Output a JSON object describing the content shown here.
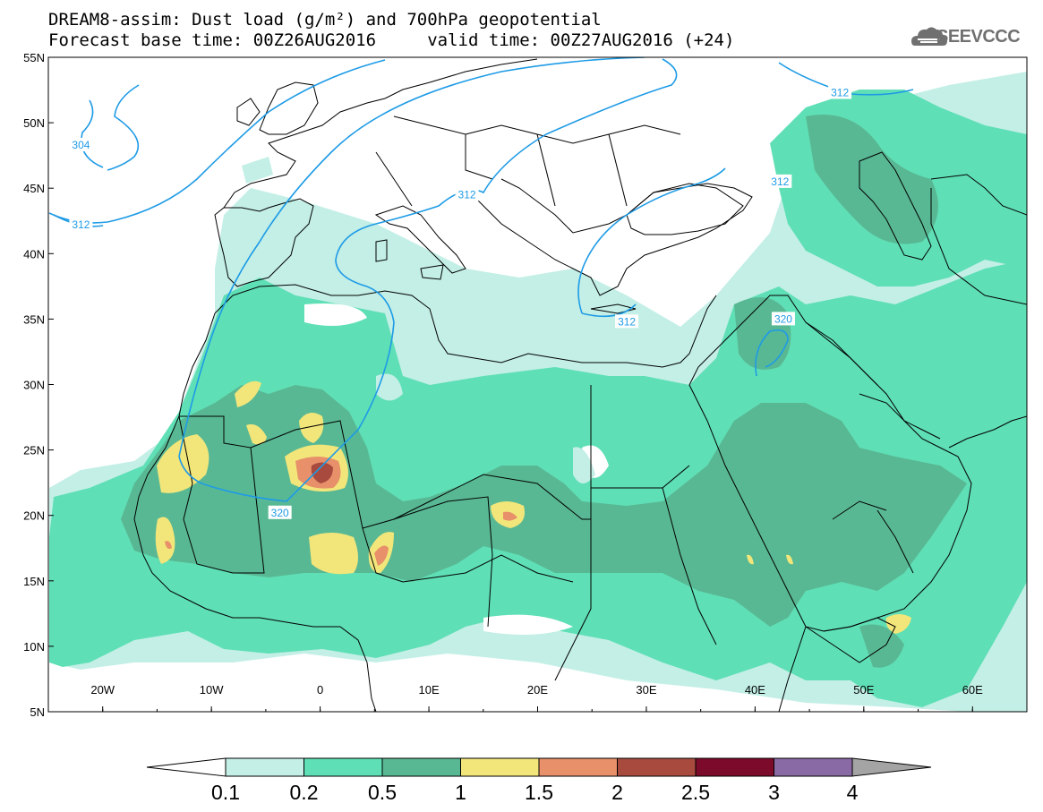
{
  "title_line1": "DREAM8-assim: Dust load (g/m²) and 700hPa geopotential",
  "title_line2": "Forecast base time: 00Z26AUG2016     valid time: 00Z27AUG2016 (+24)",
  "logo_text": "SEEVCCC",
  "map": {
    "lon_range": [
      -25,
      65
    ],
    "lat_range": [
      5,
      55
    ],
    "lat_ticks": [
      "55N",
      "50N",
      "45N",
      "40N",
      "35N",
      "30N",
      "25N",
      "20N",
      "15N",
      "10N",
      "5N"
    ],
    "lon_ticks": [
      "20W",
      "10W",
      "0",
      "10E",
      "20E",
      "30E",
      "40E",
      "50E",
      "60E"
    ],
    "contour_labels": [
      {
        "text": "304",
        "lon": -22.0,
        "lat": 48.3
      },
      {
        "text": "312",
        "lon": -22.0,
        "lat": 42.2
      },
      {
        "text": "312",
        "lon": 47.8,
        "lat": 52.3
      },
      {
        "text": "312",
        "lon": 42.3,
        "lat": 45.5
      },
      {
        "text": "312",
        "lon": 13.5,
        "lat": 44.5
      },
      {
        "text": "312",
        "lon": 28.2,
        "lat": 34.8
      },
      {
        "text": "320",
        "lon": 42.6,
        "lat": 35.0
      },
      {
        "text": "320",
        "lon": -3.7,
        "lat": 20.2
      }
    ],
    "colors": {
      "ocean_land": "#ffffff",
      "geopotential_line": "#1e9be6",
      "borders": "#000000"
    }
  },
  "colorbar": {
    "labels": [
      "0.1",
      "0.2",
      "0.5",
      "1",
      "1.5",
      "2",
      "2.5",
      "3",
      "4"
    ],
    "colors": [
      "#c3efe6",
      "#5fdfb5",
      "#59b894",
      "#f2e67a",
      "#e8906a",
      "#a84a3e",
      "#7c0a2a",
      "#8a6aa4",
      "#a4a4a4"
    ],
    "under_color": "#ffffff",
    "over_color": "#a4a4a4"
  }
}
